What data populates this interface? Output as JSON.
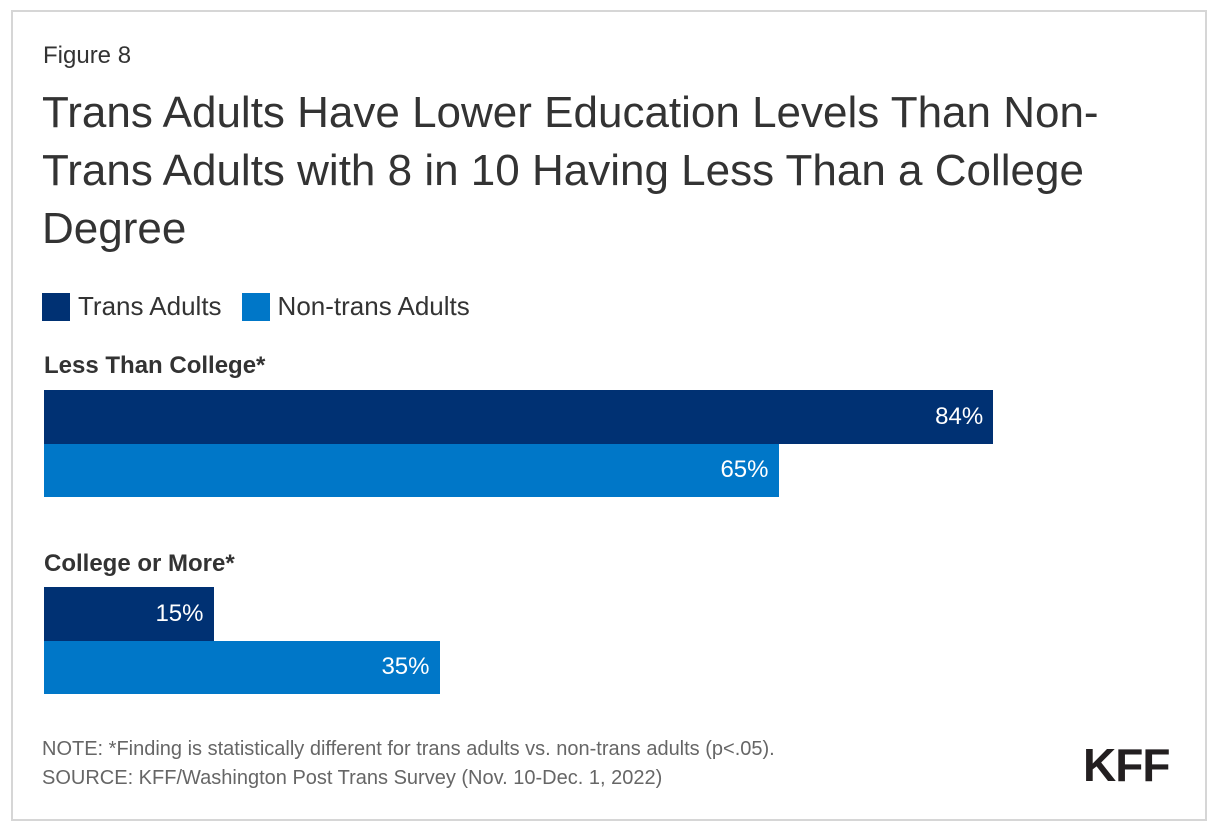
{
  "figure_label": "Figure 8",
  "chart_data": {
    "type": "bar",
    "orientation": "horizontal",
    "title": "Trans Adults Have Lower Education Levels Than Non-Trans Adults with 8 in 10 Having Less Than a College Degree",
    "categories": [
      "Less Than College*",
      "College or More*"
    ],
    "series": [
      {
        "name": "Trans Adults",
        "color": "#003173",
        "values": [
          84,
          15
        ],
        "labels": [
          "84%",
          "15%"
        ]
      },
      {
        "name": "Non-trans Adults",
        "color": "#0077c8",
        "values": [
          65,
          35
        ],
        "labels": [
          "65%",
          "35%"
        ]
      }
    ],
    "xlim": [
      0,
      100
    ],
    "legend": "top-left",
    "grid": false
  },
  "note": "NOTE: *Finding is statistically different for trans adults vs. non-trans adults (p<.05).",
  "source": "SOURCE: KFF/Washington Post Trans Survey (Nov. 10-Dec. 1, 2022)",
  "logo": "KFF"
}
